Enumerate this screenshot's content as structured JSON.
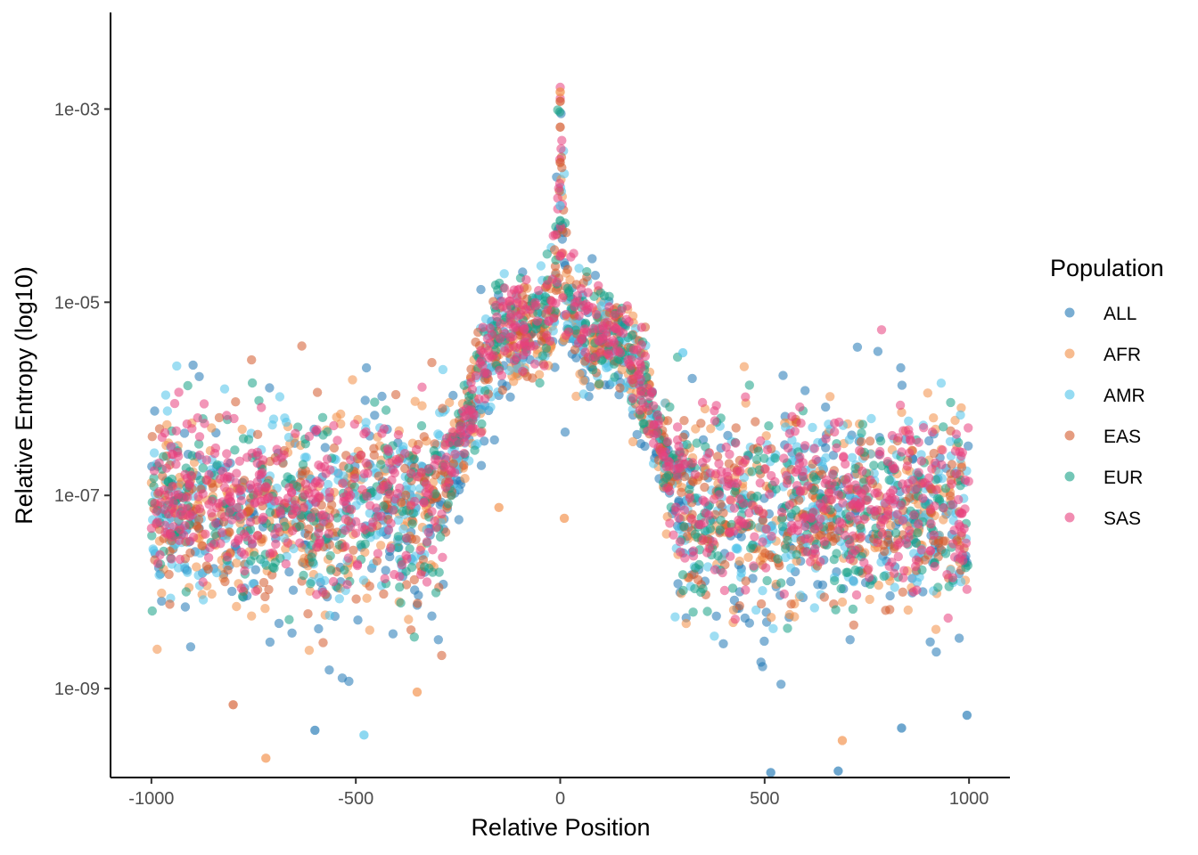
{
  "chart_data": {
    "type": "scatter",
    "title": "",
    "xlabel": "Relative Position",
    "ylabel": "Relative Entropy (log10)",
    "x_range": [
      -1100,
      1100
    ],
    "y_scale": "log10",
    "y_range": [
      1.2e-10,
      0.01
    ],
    "x_ticks": [
      -1000,
      -500,
      0,
      500,
      1000
    ],
    "x_tick_labels": [
      "-1000",
      "-500",
      "0",
      "500",
      "1000"
    ],
    "y_ticks": [
      1e-09,
      1e-07,
      1e-05,
      0.001
    ],
    "y_tick_labels": [
      "1e-09",
      "1e-07",
      "1e-05",
      "1e-03"
    ],
    "grid": false,
    "legend": {
      "title": "Population",
      "placement": "right"
    },
    "series": [
      {
        "name": "ALL",
        "color": "#1F77B4"
      },
      {
        "name": "AFR",
        "color": "#F28E45"
      },
      {
        "name": "AMR",
        "color": "#4FC3EA"
      },
      {
        "name": "EAS",
        "color": "#D45A2C"
      },
      {
        "name": "EUR",
        "color": "#16A085"
      },
      {
        "name": "SAS",
        "color": "#E8407D"
      }
    ],
    "density_profile": {
      "description_units": "median log10 entropy by relative position",
      "x": [
        -1000,
        -300,
        -260,
        -200,
        -150,
        -50,
        -10,
        0,
        10,
        50,
        150,
        200,
        260,
        300,
        1000
      ],
      "median_log10_y": [
        -7.15,
        -7.1,
        -6.6,
        -5.9,
        -5.3,
        -5.25,
        -4.9,
        -3.3,
        -4.9,
        -5.3,
        -5.4,
        -5.85,
        -6.6,
        -7.1,
        -7.15
      ]
    },
    "peak_points": [
      {
        "x": 0,
        "y": 0.0015,
        "series": "AFR"
      },
      {
        "x": 0,
        "y": 0.0012,
        "series": "EAS"
      },
      {
        "x": 0,
        "y": 0.00065,
        "series": "EAS"
      },
      {
        "x": 0,
        "y": 0.00028,
        "series": "EAS"
      },
      {
        "x": 0,
        "y": 0.0001,
        "series": "AMR"
      },
      {
        "x": 0,
        "y": 7e-05,
        "series": "EUR"
      },
      {
        "x": 0,
        "y": 3e-05,
        "series": "SAS"
      }
    ],
    "outlier_points": [
      {
        "x": -720,
        "y": 1.9e-10,
        "series": "AFR"
      },
      {
        "x": -600,
        "y": 3.7e-10,
        "series": "ALL"
      },
      {
        "x": -480,
        "y": 3.3e-10,
        "series": "AMR"
      },
      {
        "x": -800,
        "y": 6.8e-10,
        "series": "EAS"
      },
      {
        "x": -350,
        "y": 9.2e-10,
        "series": "AFR"
      },
      {
        "x": 515,
        "y": 1.35e-10,
        "series": "ALL"
      },
      {
        "x": 680,
        "y": 1.4e-10,
        "series": "ALL"
      },
      {
        "x": 690,
        "y": 2.9e-10,
        "series": "AFR"
      },
      {
        "x": 835,
        "y": 3.9e-10,
        "series": "ALL"
      },
      {
        "x": 995,
        "y": 5.3e-10,
        "series": "ALL"
      },
      {
        "x": 10,
        "y": 5.8e-08,
        "series": "AFR"
      },
      {
        "x": -150,
        "y": 7.5e-08,
        "series": "AFR"
      },
      {
        "x": 300,
        "y": 3e-06,
        "series": "AMR"
      }
    ]
  }
}
